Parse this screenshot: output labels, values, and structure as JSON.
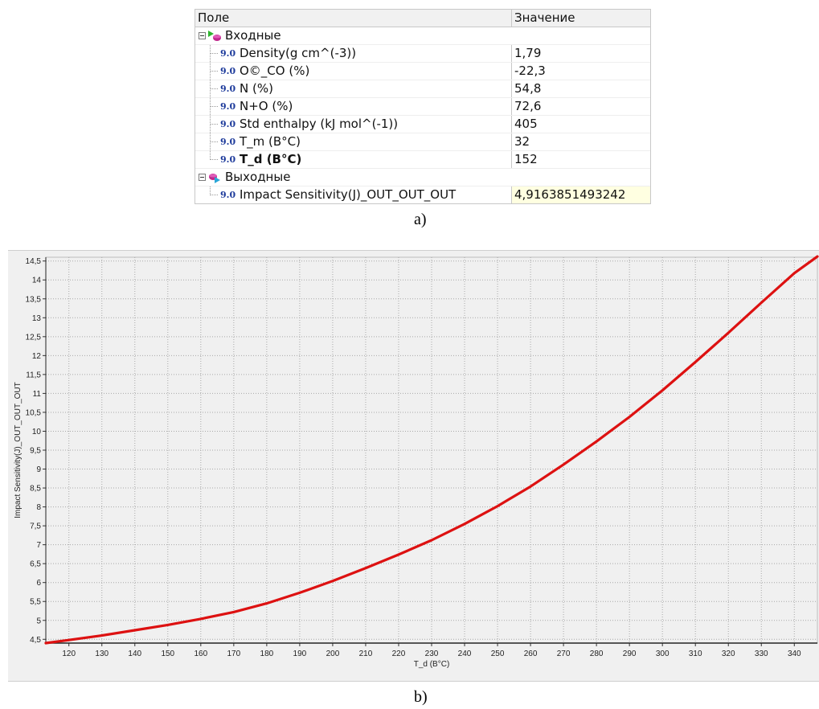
{
  "grid": {
    "header": {
      "field": "Поле",
      "value": "Значение"
    },
    "input_group": {
      "label": "Входные",
      "icon": "input-group-icon"
    },
    "inputs": [
      {
        "label": "Density(g cm^(-3))",
        "value": "1,79",
        "badge": "9.0",
        "bold": false
      },
      {
        "label": "O©_CO (%)",
        "value": "-22,3",
        "badge": "9.0",
        "bold": false
      },
      {
        "label": "N (%)",
        "value": "54,8",
        "badge": "9.0",
        "bold": false
      },
      {
        "label": "N+O (%)",
        "value": "72,6",
        "badge": "9.0",
        "bold": false
      },
      {
        "label": "Std enthalpy (kJ mol^(-1))",
        "value": "405",
        "badge": "9.0",
        "bold": false
      },
      {
        "label": "T_m (B°C)",
        "value": "32",
        "badge": "9.0",
        "bold": false
      },
      {
        "label": "T_d (B°C)",
        "value": "152",
        "badge": "9.0",
        "bold": true
      }
    ],
    "output_group": {
      "label": "Выходные",
      "icon": "output-group-icon"
    },
    "outputs": [
      {
        "label": "Impact Sensitivity(J)_OUT_OUT_OUT",
        "value": "4,9163851493242",
        "badge": "9.0"
      }
    ]
  },
  "captions": {
    "a": "a)",
    "b": "b)"
  },
  "colors": {
    "curve": "#dd1111",
    "grid_lines": "#a8a8a8",
    "output_highlight": "#ffffe1",
    "badge": "#1f3c9c"
  },
  "chart_data": {
    "type": "line",
    "xlabel": "T_d (B°C)",
    "ylabel": "Impact Sensitivity(J)_OUT_OUT_OUT",
    "xlim": [
      113,
      347
    ],
    "ylim": [
      4.4,
      14.6
    ],
    "x_ticks": [
      "120",
      "130",
      "140",
      "150",
      "160",
      "170",
      "180",
      "190",
      "200",
      "210",
      "220",
      "230",
      "240",
      "250",
      "260",
      "270",
      "280",
      "290",
      "300",
      "310",
      "320",
      "330",
      "340"
    ],
    "y_ticks": [
      "4,5",
      "5",
      "5,5",
      "6",
      "6,5",
      "7",
      "7,5",
      "8",
      "8,5",
      "9",
      "9,5",
      "10",
      "10,5",
      "11",
      "11,5",
      "12",
      "12,5",
      "13",
      "13,5",
      "14",
      "14,5"
    ],
    "grid": true,
    "series": [
      {
        "color": "#dd1111",
        "x": [
          113,
          120,
          130,
          140,
          150,
          160,
          170,
          180,
          190,
          200,
          210,
          220,
          230,
          240,
          250,
          260,
          270,
          280,
          290,
          300,
          310,
          320,
          330,
          340,
          347
        ],
        "y": [
          4.4,
          4.48,
          4.6,
          4.74,
          4.88,
          5.04,
          5.22,
          5.45,
          5.73,
          6.04,
          6.38,
          6.74,
          7.12,
          7.55,
          8.02,
          8.54,
          9.12,
          9.73,
          10.38,
          11.08,
          11.83,
          12.6,
          13.4,
          14.18,
          14.62
        ]
      }
    ]
  }
}
